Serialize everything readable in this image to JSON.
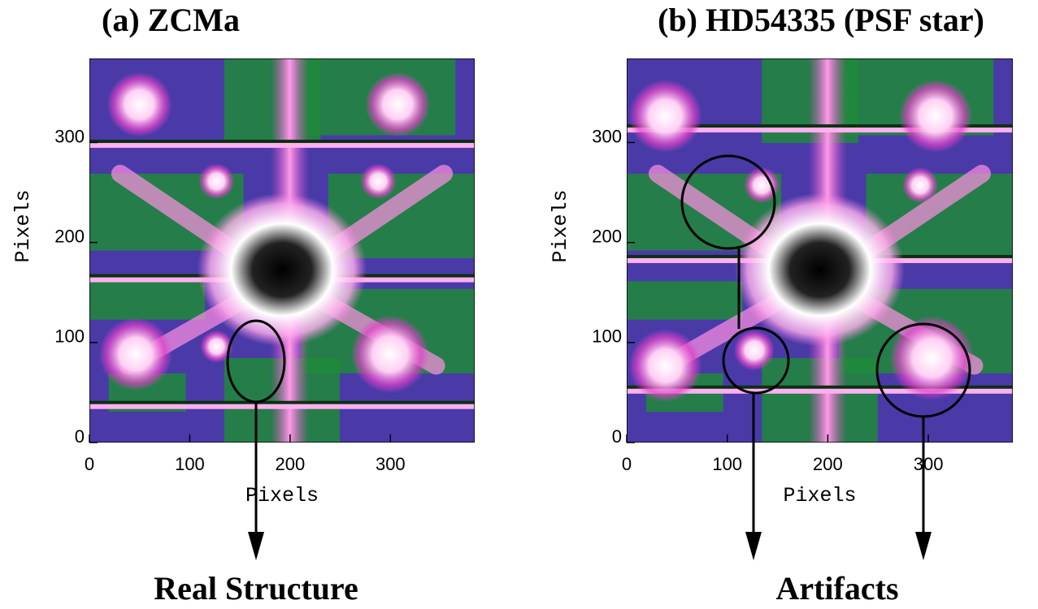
{
  "panels": [
    {
      "title": "(a) ZCMa",
      "xlabel": "Pixels",
      "ylabel": "Pixels",
      "xlim": [
        0,
        384
      ],
      "ylim": [
        0,
        384
      ],
      "xticks": [
        0,
        100,
        200,
        300
      ],
      "yticks": [
        0,
        100,
        200,
        300
      ],
      "callout": "Real Structure"
    },
    {
      "title": "(b) HD54335 (PSF star)",
      "xlabel": "Pixels",
      "ylabel": "Pixels",
      "xlim": [
        0,
        384
      ],
      "ylim": [
        0,
        384
      ],
      "xticks": [
        0,
        100,
        200,
        300
      ],
      "yticks": [
        0,
        100,
        200,
        300
      ],
      "callout": "Artifacts"
    }
  ]
}
